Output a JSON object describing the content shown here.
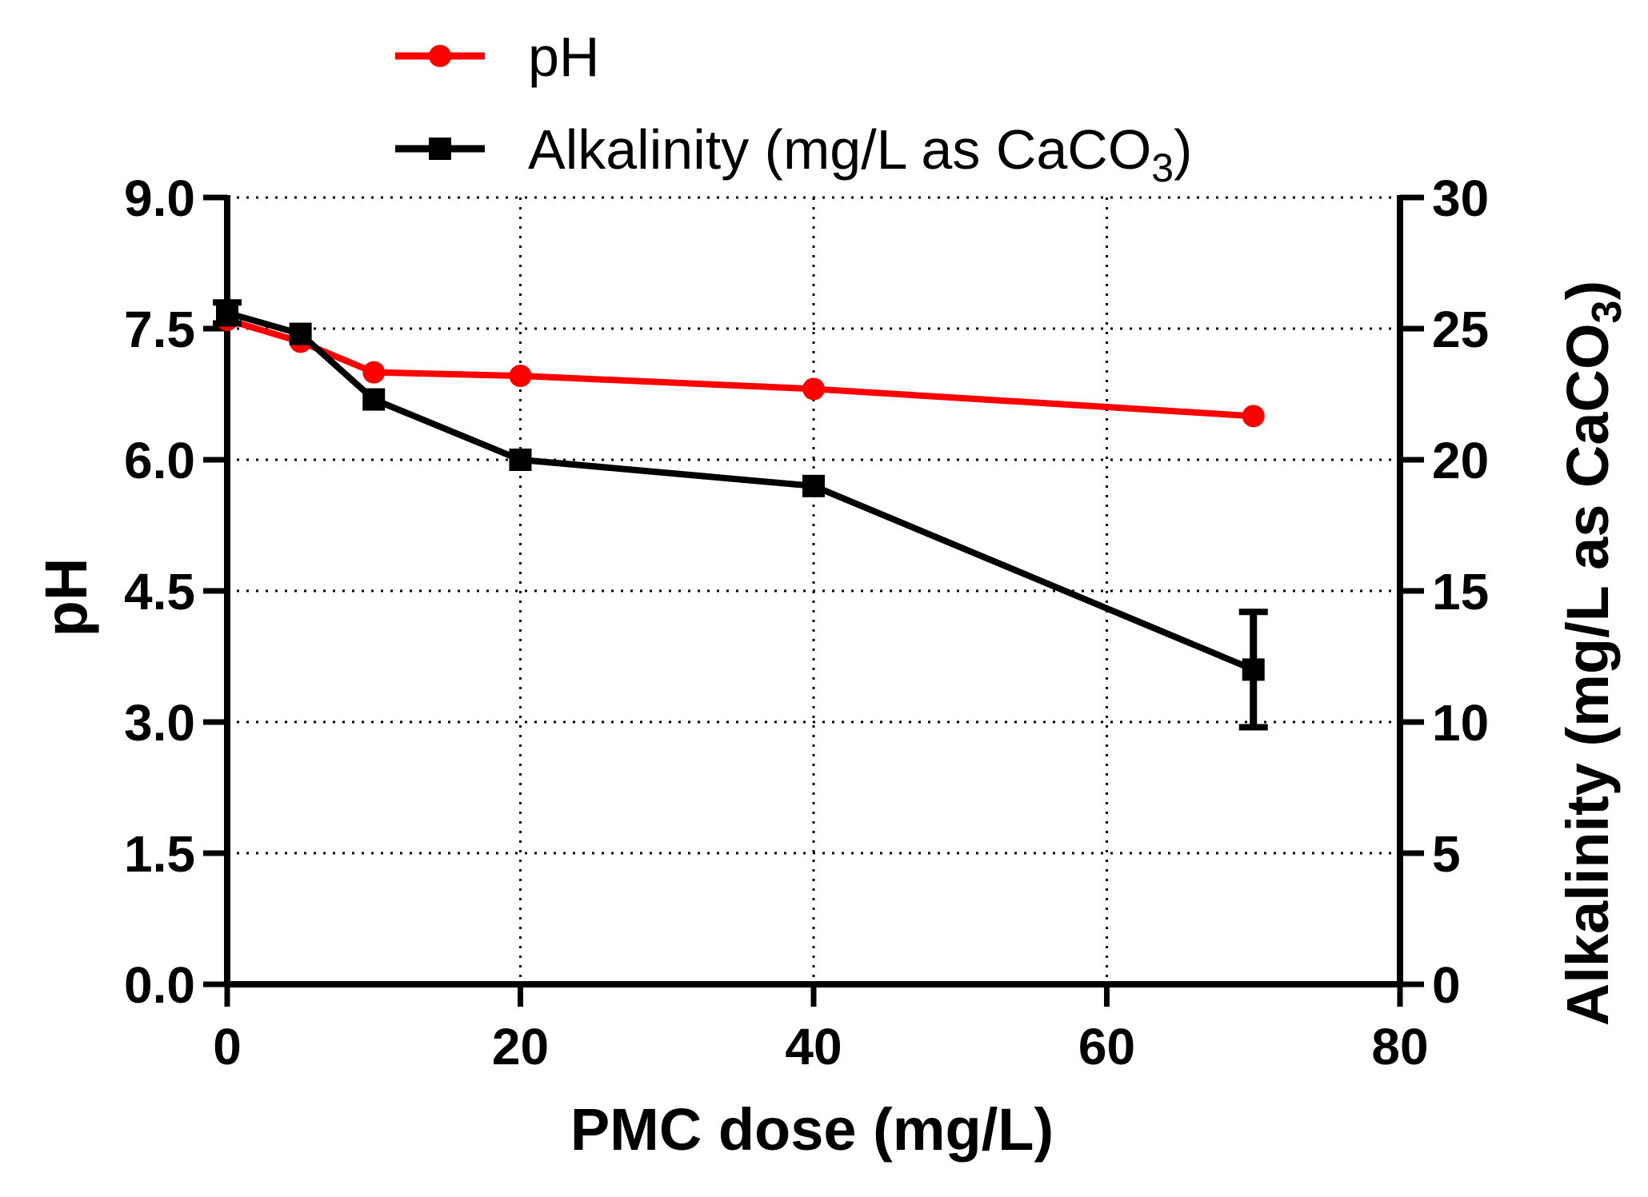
{
  "chart_data": {
    "type": "line",
    "title": "",
    "xlabel": "PMC dose (mg/L)",
    "ylabel": "pH",
    "y2label": {
      "text": "Alkalinity (mg/L as CaCO",
      "sub": "3",
      "tail": ")"
    },
    "xlim": [
      0,
      80
    ],
    "ylim": [
      0,
      9
    ],
    "y2lim": [
      0,
      30
    ],
    "x_ticks": [
      0,
      20,
      40,
      60,
      80
    ],
    "y_ticks": [
      "0.0",
      "1.5",
      "3.0",
      "4.5",
      "6.0",
      "7.5",
      "9.0"
    ],
    "y2_ticks": [
      "0",
      "5",
      "10",
      "15",
      "20",
      "25",
      "30"
    ],
    "grid": true,
    "legend_position": "top-center",
    "series": [
      {
        "name": "pH",
        "legend": {
          "text": "pH",
          "sub": "",
          "tail": ""
        },
        "axis": "left",
        "color": "#ff0000",
        "marker": "circle",
        "x": [
          0,
          5,
          10,
          20,
          40,
          70
        ],
        "values": [
          7.6,
          7.35,
          7.0,
          6.96,
          6.81,
          6.5
        ]
      },
      {
        "name": "Alkalinity (mg/L as CaCO3)",
        "legend": {
          "text": "Alkalinity (mg/L as CaCO",
          "sub": "3",
          "tail": ")"
        },
        "axis": "right",
        "color": "#000000",
        "marker": "square",
        "x": [
          0,
          5,
          10,
          20,
          40,
          70
        ],
        "values": [
          25.6,
          24.8,
          22.3,
          20.0,
          19.0,
          12.0
        ],
        "error": [
          0.4,
          0,
          0,
          0,
          0,
          2.2
        ]
      }
    ]
  }
}
